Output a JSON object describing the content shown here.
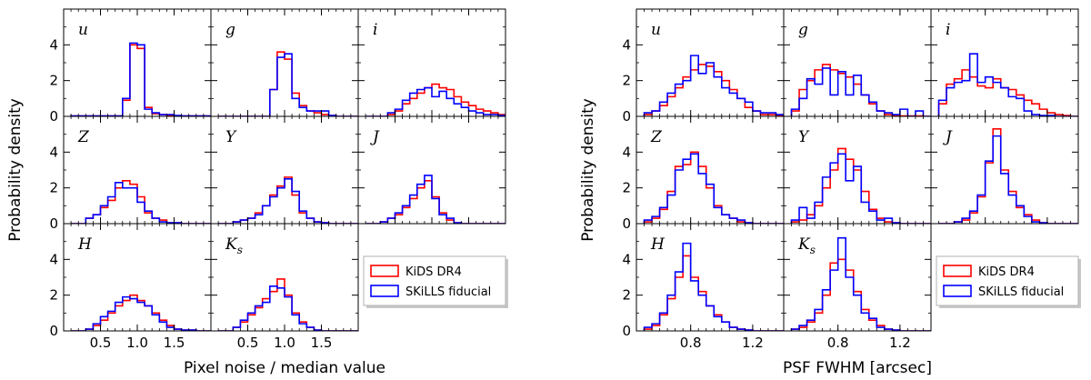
{
  "chart_data": [
    {
      "type": "step-histogram",
      "title": "",
      "xlabel": "Pixel noise / median value",
      "ylabel": "Probability density",
      "xlim": [
        0,
        2
      ],
      "ylim": [
        0,
        6
      ],
      "xticks": [
        0.5,
        1.0,
        1.5
      ],
      "xtick_labels": [
        "0.5",
        "1.0",
        "1.5"
      ],
      "yticks": [
        0,
        2,
        4
      ],
      "ytick_labels": [
        "0",
        "2",
        "4"
      ],
      "legend": {
        "location": "empty-panel",
        "entries": [
          "KiDS DR4",
          "SKiLLS fiducial"
        ]
      },
      "series_colors": {
        "KiDS DR4": "#ff0000",
        "SKiLLS fiducial": "#0000ff"
      },
      "panels": [
        {
          "band": "u",
          "bin_start": 0.1,
          "bin_width": 0.1,
          "series": [
            {
              "name": "KiDS DR4",
              "values": [
                0.02,
                0.02,
                0.02,
                0.02,
                0.02,
                0.02,
                0.02,
                0.9,
                4.0,
                3.8,
                0.5,
                0.15,
                0.1,
                0.05,
                0.02,
                0.02,
                0.02,
                0.02,
                0.02
              ]
            },
            {
              "name": "SKiLLS fiducial",
              "values": [
                0.02,
                0.02,
                0.02,
                0.02,
                0.02,
                0.02,
                0.02,
                1.0,
                4.1,
                4.0,
                0.4,
                0.2,
                0.1,
                0.1,
                0.05,
                0.02,
                0.02,
                0.02,
                0.02
              ]
            }
          ]
        },
        {
          "band": "g",
          "bin_start": 0.1,
          "bin_width": 0.1,
          "series": [
            {
              "name": "KiDS DR4",
              "values": [
                0,
                0,
                0,
                0,
                0,
                0,
                0,
                1.5,
                3.6,
                3.2,
                1.3,
                0.6,
                0.3,
                0.2,
                0.1,
                0.05,
                0,
                0,
                0
              ]
            },
            {
              "name": "SKiLLS fiducial",
              "values": [
                0,
                0,
                0,
                0,
                0,
                0,
                0,
                1.5,
                3.3,
                3.5,
                1.0,
                0.5,
                0.3,
                0.3,
                0.3,
                0.05,
                0,
                0,
                0
              ]
            }
          ]
        },
        {
          "band": "i",
          "bin_start": 0.1,
          "bin_width": 0.1,
          "series": [
            {
              "name": "KiDS DR4",
              "values": [
                0,
                0,
                0,
                0.1,
                0.3,
                0.7,
                1.0,
                1.3,
                1.6,
                1.8,
                1.6,
                1.5,
                1.1,
                0.8,
                0.6,
                0.4,
                0.3,
                0.2,
                0.1
              ]
            },
            {
              "name": "SKiLLS fiducial",
              "values": [
                0,
                0,
                0,
                0.2,
                0.4,
                0.9,
                1.3,
                1.5,
                1.6,
                1.1,
                1.4,
                1.0,
                0.7,
                0.5,
                0.3,
                0.2,
                0.1,
                0.1,
                0.05
              ]
            }
          ]
        },
        {
          "band": "Z",
          "bin_start": 0.1,
          "bin_width": 0.1,
          "series": [
            {
              "name": "KiDS DR4",
              "values": [
                0,
                0,
                0.3,
                0.5,
                0.9,
                1.3,
                2.0,
                2.4,
                2.2,
                1.5,
                0.6,
                0.3,
                0.2,
                0.05,
                0.05,
                0,
                0,
                0,
                0
              ]
            },
            {
              "name": "SKiLLS fiducial",
              "values": [
                0,
                0,
                0.3,
                0.5,
                1.0,
                1.5,
                2.3,
                2.0,
                2.0,
                1.2,
                0.7,
                0.3,
                0.1,
                0.05,
                0.05,
                0,
                0,
                0,
                0
              ]
            }
          ]
        },
        {
          "band": "Y",
          "bin_start": 0.1,
          "bin_width": 0.1,
          "series": [
            {
              "name": "KiDS DR4",
              "values": [
                0,
                0,
                0.1,
                0.2,
                0.3,
                0.6,
                1.0,
                1.6,
                2.1,
                2.6,
                1.6,
                0.6,
                0.3,
                0.1,
                0.05,
                0,
                0,
                0,
                0
              ]
            },
            {
              "name": "SKiLLS fiducial",
              "values": [
                0,
                0,
                0.1,
                0.2,
                0.3,
                0.5,
                1.0,
                1.5,
                2.0,
                2.5,
                1.8,
                0.7,
                0.3,
                0.1,
                0.05,
                0,
                0,
                0,
                0
              ]
            }
          ]
        },
        {
          "band": "J",
          "bin_start": 0.1,
          "bin_width": 0.1,
          "series": [
            {
              "name": "KiDS DR4",
              "values": [
                0,
                0,
                0.1,
                0.3,
                0.5,
                0.9,
                1.4,
                2.0,
                2.4,
                1.5,
                0.6,
                0.2,
                0.05,
                0,
                0,
                0,
                0,
                0,
                0
              ]
            },
            {
              "name": "SKiLLS fiducial",
              "values": [
                0,
                0,
                0.1,
                0.3,
                0.6,
                1.0,
                1.6,
                2.2,
                2.7,
                1.4,
                0.5,
                0.3,
                0.05,
                0,
                0,
                0,
                0,
                0,
                0
              ]
            }
          ]
        },
        {
          "band": "H",
          "bin_start": 0.1,
          "bin_width": 0.1,
          "series": [
            {
              "name": "KiDS DR4",
              "values": [
                0,
                0,
                0.1,
                0.3,
                0.6,
                1.0,
                1.4,
                1.7,
                2.0,
                1.7,
                1.4,
                1.0,
                0.6,
                0.3,
                0.1,
                0.05,
                0.05,
                0,
                0
              ]
            },
            {
              "name": "SKiLLS fiducial",
              "values": [
                0,
                0,
                0.1,
                0.4,
                0.8,
                1.1,
                1.6,
                1.9,
                1.8,
                1.6,
                1.4,
                0.9,
                0.5,
                0.2,
                0.1,
                0.05,
                0.05,
                0,
                0
              ]
            }
          ]
        },
        {
          "band": "K_s",
          "bin_start": 0.1,
          "bin_width": 0.1,
          "series": [
            {
              "name": "KiDS DR4",
              "values": [
                0,
                0,
                0.2,
                0.5,
                0.9,
                1.3,
                1.8,
                2.2,
                2.9,
                2.0,
                1.0,
                0.5,
                0.2,
                0.05,
                0,
                0,
                0,
                0,
                0
              ]
            },
            {
              "name": "SKiLLS fiducial",
              "values": [
                0,
                0,
                0.2,
                0.6,
                1.0,
                1.4,
                1.6,
                2.5,
                2.4,
                1.9,
                0.9,
                0.4,
                0.2,
                0.05,
                0,
                0,
                0,
                0,
                0
              ]
            }
          ]
        }
      ]
    },
    {
      "type": "step-histogram",
      "title": "",
      "xlabel": "PSF FWHM [arcsec]",
      "ylabel": "Probability density",
      "xlim": [
        0.45,
        1.4
      ],
      "ylim": [
        0,
        6
      ],
      "xticks": [
        0.8,
        1.2
      ],
      "xtick_labels": [
        "0.8",
        "1.2"
      ],
      "yticks": [
        0,
        2,
        4
      ],
      "ytick_labels": [
        "0",
        "2",
        "4"
      ],
      "legend": {
        "location": "empty-panel",
        "entries": [
          "KiDS DR4",
          "SKiLLS fiducial"
        ]
      },
      "series_colors": {
        "KiDS DR4": "#ff0000",
        "SKiLLS fiducial": "#0000ff"
      },
      "panels": [
        {
          "band": "u",
          "bin_start": 0.5,
          "bin_width": 0.05,
          "series": [
            {
              "name": "KiDS DR4",
              "values": [
                0.1,
                0.3,
                0.6,
                1.1,
                1.6,
                2.2,
                2.6,
                2.9,
                2.8,
                2.5,
                2.0,
                1.5,
                1.0,
                0.5,
                0.3,
                0.1,
                0.1,
                0.05
              ]
            },
            {
              "name": "SKiLLS fiducial",
              "values": [
                0.2,
                0.3,
                0.8,
                1.3,
                1.8,
                2.0,
                3.4,
                2.4,
                3.0,
                2.2,
                1.6,
                1.3,
                1.0,
                0.8,
                0.3,
                0.2,
                0.2,
                0.1
              ]
            }
          ]
        },
        {
          "band": "g",
          "bin_start": 0.5,
          "bin_width": 0.05,
          "series": [
            {
              "name": "KiDS DR4",
              "values": [
                0.3,
                1.5,
                2.0,
                2.6,
                2.9,
                2.6,
                2.4,
                2.2,
                1.8,
                1.2,
                0.7,
                0.3,
                0.1,
                0.05,
                0.02,
                0.02,
                0.02,
                0
              ]
            },
            {
              "name": "SKiLLS fiducial",
              "values": [
                0.4,
                1.0,
                2.1,
                1.8,
                2.7,
                1.2,
                2.5,
                1.2,
                2.3,
                1.2,
                0.8,
                0.3,
                0.2,
                0.1,
                0.4,
                0,
                0.3,
                0
              ]
            }
          ]
        },
        {
          "band": "i",
          "bin_start": 0.5,
          "bin_width": 0.05,
          "series": [
            {
              "name": "KiDS DR4",
              "values": [
                0.7,
                1.8,
                2.1,
                2.6,
                2.2,
                1.7,
                1.6,
                2.1,
                1.6,
                1.5,
                1.2,
                0.9,
                0.7,
                0.4,
                0.2,
                0.1,
                0.05,
                0
              ]
            },
            {
              "name": "SKiLLS fiducial",
              "values": [
                0.9,
                1.6,
                1.9,
                2.0,
                3.5,
                1.9,
                2.2,
                1.9,
                1.6,
                1.1,
                1.0,
                0.3,
                0.1,
                0.05,
                0.05,
                0,
                0,
                0
              ]
            }
          ]
        },
        {
          "band": "Z",
          "bin_start": 0.5,
          "bin_width": 0.05,
          "series": [
            {
              "name": "KiDS DR4",
              "values": [
                0.1,
                0.3,
                0.8,
                1.8,
                3.2,
                3.3,
                4.0,
                3.2,
                2.0,
                1.0,
                0.5,
                0.3,
                0.1,
                0.05,
                0,
                0,
                0,
                0
              ]
            },
            {
              "name": "SKiLLS fiducial",
              "values": [
                0.2,
                0.4,
                0.9,
                1.6,
                3.0,
                3.6,
                3.9,
                2.8,
                2.2,
                0.9,
                0.5,
                0.3,
                0.2,
                0.05,
                0,
                0,
                0,
                0
              ]
            }
          ]
        },
        {
          "band": "Y",
          "bin_start": 0.5,
          "bin_width": 0.05,
          "series": [
            {
              "name": "KiDS DR4",
              "values": [
                0.1,
                0.2,
                0.5,
                1.0,
                2.0,
                3.0,
                4.2,
                3.6,
                3.0,
                1.8,
                0.8,
                0.3,
                0.1,
                0.05,
                0,
                0,
                0,
                0
              ]
            },
            {
              "name": "SKiLLS fiducial",
              "values": [
                0.2,
                0.9,
                0.3,
                1.2,
                2.6,
                3.4,
                3.9,
                2.4,
                3.2,
                1.2,
                0.7,
                0.2,
                0.3,
                0.05,
                0,
                0,
                0,
                0
              ]
            }
          ]
        },
        {
          "band": "J",
          "bin_start": 0.5,
          "bin_width": 0.05,
          "series": [
            {
              "name": "KiDS DR4",
              "values": [
                0,
                0,
                0.1,
                0.2,
                0.6,
                1.5,
                3.4,
                5.3,
                3.0,
                1.8,
                0.9,
                0.5,
                0.2,
                0.05,
                0,
                0,
                0,
                0
              ]
            },
            {
              "name": "SKiLLS fiducial",
              "values": [
                0,
                0,
                0.1,
                0.3,
                0.7,
                1.6,
                3.5,
                4.9,
                2.8,
                1.6,
                1.0,
                0.4,
                0.1,
                0.05,
                0,
                0,
                0,
                0
              ]
            }
          ]
        },
        {
          "band": "H",
          "bin_start": 0.5,
          "bin_width": 0.05,
          "series": [
            {
              "name": "KiDS DR4",
              "values": [
                0.1,
                0.3,
                0.9,
                1.8,
                3.0,
                4.2,
                3.0,
                2.2,
                1.4,
                0.9,
                0.5,
                0.2,
                0.1,
                0.05,
                0,
                0,
                0,
                0
              ]
            },
            {
              "name": "SKiLLS fiducial",
              "values": [
                0.2,
                0.4,
                1.0,
                2.0,
                3.3,
                4.9,
                2.8,
                2.0,
                1.4,
                0.8,
                0.5,
                0.2,
                0.1,
                0.05,
                0,
                0,
                0,
                0
              ]
            }
          ]
        },
        {
          "band": "K_s",
          "bin_start": 0.5,
          "bin_width": 0.05,
          "series": [
            {
              "name": "KiDS DR4",
              "values": [
                0.1,
                0.2,
                0.5,
                1.0,
                2.0,
                3.8,
                4.0,
                3.4,
                2.2,
                1.2,
                0.6,
                0.3,
                0.1,
                0.05,
                0,
                0,
                0,
                0
              ]
            },
            {
              "name": "SKiLLS fiducial",
              "values": [
                0.1,
                0.3,
                0.6,
                1.2,
                2.3,
                3.4,
                5.2,
                3.0,
                2.0,
                1.0,
                0.7,
                0.2,
                0.1,
                0.05,
                0,
                0,
                0,
                0
              ]
            }
          ]
        }
      ]
    }
  ]
}
